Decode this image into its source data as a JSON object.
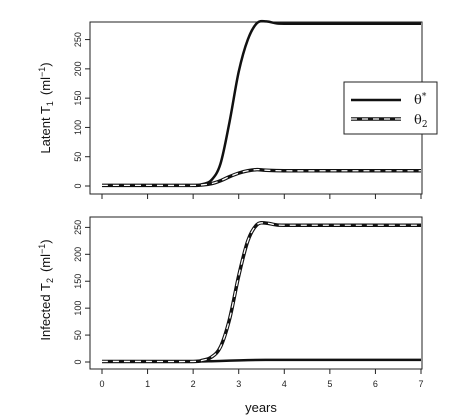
{
  "chart_data": [
    {
      "type": "line",
      "ylabel_main": "Latent T",
      "ylabel_sub": "1",
      "ylabel_unit_open": "(ml",
      "ylabel_unit_exp": "−1",
      "ylabel_unit_close": ")",
      "xlim": [
        0,
        7
      ],
      "ylim": [
        0,
        280
      ],
      "yticks": [
        "0",
        "50",
        "100",
        "150",
        "200",
        "250"
      ],
      "ytick_values": [
        0,
        50,
        100,
        150,
        200,
        250
      ],
      "legend": {
        "placement": "right",
        "entries": [
          {
            "label_main": "θ",
            "label_sup": "*",
            "style": "solid"
          },
          {
            "label_main": "θ",
            "label_sub": "2",
            "style": "dashed"
          }
        ]
      },
      "series": [
        {
          "name": "θ*",
          "style": "solid",
          "x": [
            0,
            1,
            2,
            2.2,
            2.4,
            2.6,
            2.8,
            3.0,
            3.2,
            3.4,
            3.6,
            3.8,
            4,
            5,
            6,
            7
          ],
          "y": [
            1,
            1,
            1,
            3,
            10,
            38,
            110,
            195,
            250,
            278,
            281,
            278,
            277,
            277,
            277,
            277
          ]
        },
        {
          "name": "θ2",
          "style": "dashed",
          "x": [
            0,
            1,
            2,
            2.2,
            2.4,
            2.6,
            2.8,
            3.0,
            3.2,
            3.4,
            3.6,
            4,
            5,
            6,
            7
          ],
          "y": [
            1,
            1,
            1,
            2,
            4,
            9,
            16,
            22,
            26,
            28,
            27,
            26,
            26,
            26,
            26
          ]
        }
      ]
    },
    {
      "type": "line",
      "ylabel_main": "Infected T",
      "ylabel_sub": "2",
      "ylabel_unit_open": "(ml",
      "ylabel_unit_exp": "−1",
      "ylabel_unit_close": ")",
      "xlabel": "years",
      "xlim": [
        0,
        7
      ],
      "ylim": [
        0,
        260
      ],
      "xticks": [
        "0",
        "1",
        "2",
        "3",
        "4",
        "5",
        "6",
        "7"
      ],
      "xtick_values": [
        0,
        1,
        2,
        3,
        4,
        5,
        6,
        7
      ],
      "yticks": [
        "0",
        "50",
        "100",
        "150",
        "200",
        "250"
      ],
      "ytick_values": [
        0,
        50,
        100,
        150,
        200,
        250
      ],
      "series": [
        {
          "name": "θ*",
          "style": "solid",
          "x": [
            0,
            1,
            2,
            2.4,
            2.8,
            3.2,
            3.6,
            4,
            5,
            6,
            7
          ],
          "y": [
            1,
            1,
            1,
            1.5,
            2.5,
            3.5,
            4,
            4,
            4,
            4,
            4
          ]
        },
        {
          "name": "θ2",
          "style": "dashed",
          "x": [
            0,
            1,
            2,
            2.2,
            2.4,
            2.6,
            2.8,
            3.0,
            3.2,
            3.4,
            3.6,
            3.8,
            4,
            5,
            6,
            7
          ],
          "y": [
            1,
            1,
            1,
            3,
            9,
            28,
            80,
            160,
            225,
            255,
            258,
            255,
            254,
            254,
            254,
            254
          ]
        }
      ]
    }
  ]
}
